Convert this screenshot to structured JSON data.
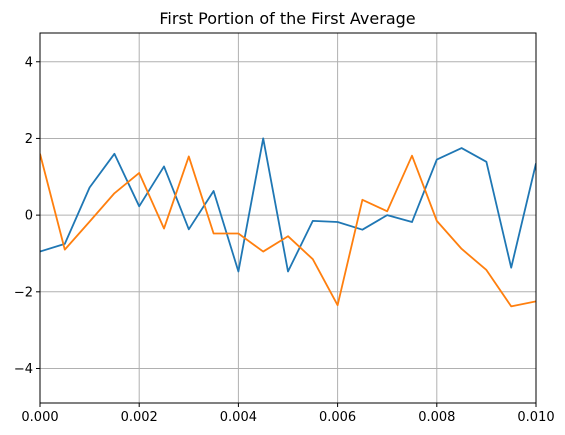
{
  "chart_data": {
    "type": "line",
    "title": "First Portion of the First Average",
    "xlabel": "",
    "ylabel": "",
    "xlim": [
      0,
      0.01
    ],
    "ylim": [
      -4.9,
      4.75
    ],
    "grid": true,
    "legend": "none",
    "x_ticks": [
      0.0,
      0.002,
      0.004,
      0.006,
      0.008,
      0.01
    ],
    "x_tick_labels": [
      "0.000",
      "0.002",
      "0.004",
      "0.006",
      "0.008",
      "0.010"
    ],
    "y_ticks": [
      -4,
      -2,
      0,
      2,
      4
    ],
    "y_tick_labels": [
      "−4",
      "−2",
      "0",
      "2",
      "4"
    ],
    "series": [
      {
        "color": "#1f77b4",
        "x": [
          0.0,
          0.0005,
          0.001,
          0.0015,
          0.002,
          0.0025,
          0.003,
          0.0035,
          0.004,
          0.0045,
          0.005,
          0.0055,
          0.006,
          0.0065,
          0.007,
          0.0075,
          0.008,
          0.0085,
          0.009,
          0.0095,
          0.01
        ],
        "y": [
          -0.95,
          -0.75,
          0.72,
          1.6,
          0.23,
          1.27,
          -0.37,
          0.63,
          -1.47,
          2.0,
          -1.47,
          -0.15,
          -0.18,
          -0.38,
          0.0,
          -0.18,
          1.45,
          1.75,
          1.39,
          -1.37,
          1.35
        ]
      },
      {
        "color": "#ff7f0e",
        "x": [
          0.0,
          0.0005,
          0.001,
          0.0015,
          0.002,
          0.0025,
          0.003,
          0.0035,
          0.004,
          0.0045,
          0.005,
          0.0055,
          0.006,
          0.0065,
          0.007,
          0.0075,
          0.008,
          0.0085,
          0.009,
          0.0095,
          0.01
        ],
        "y": [
          1.6,
          -0.9,
          -0.17,
          0.57,
          1.1,
          -0.35,
          1.53,
          -0.48,
          -0.48,
          -0.95,
          -0.55,
          -1.15,
          -2.35,
          0.4,
          0.1,
          1.55,
          -0.15,
          -0.88,
          -1.43,
          -2.38,
          -2.25
        ]
      }
    ]
  }
}
